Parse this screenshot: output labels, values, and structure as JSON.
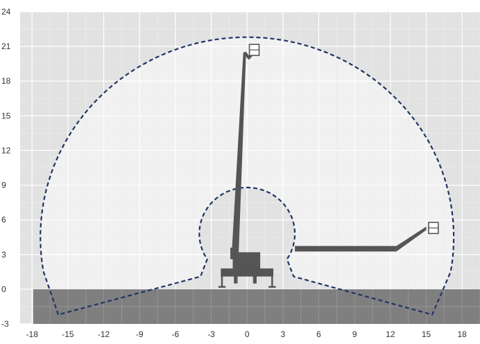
{
  "colors": {
    "plot_background": "#e2e2e2",
    "envelope_fill": "#f1f1f1",
    "grid_major": "#ffffff",
    "grid_minor": "#ececec",
    "ground": "#7f7f7f",
    "ground_grid": "#9a9a9a",
    "envelope_line": "#1f3464",
    "machine": "#555555",
    "tick_label": "#333333"
  },
  "chart_data": {
    "type": "diagram",
    "title": "",
    "xlabel": "",
    "ylabel": "",
    "xlim": [
      -19,
      19.5
    ],
    "ylim": [
      -3,
      24
    ],
    "grid": true,
    "x_ticks": [
      -18,
      -15,
      -12,
      -9,
      -6,
      -3,
      0,
      3,
      6,
      9,
      12,
      15,
      18
    ],
    "y_ticks": [
      -3,
      0,
      3,
      6,
      9,
      12,
      15,
      18,
      21,
      24
    ],
    "x_tick_labels": [
      "-18",
      "-15",
      "-12",
      "-9",
      "-6",
      "-3",
      "0",
      "3",
      "6",
      "9",
      "12",
      "15",
      "18"
    ],
    "y_tick_labels": [
      "-3",
      "0",
      "3",
      "6",
      "9",
      "12",
      "15",
      "18",
      "21",
      "24"
    ],
    "ground_level": 0,
    "working_envelope": {
      "outer_arc_center": [
        0,
        4.5
      ],
      "outer_arc_radius": 17.3,
      "outer_base_left": [
        -15.8,
        -2.2
      ],
      "outer_base_right": [
        15.5,
        -2.2
      ],
      "inner_arc_center": [
        0,
        4.8
      ],
      "inner_arc_radius": 4.0,
      "inner_base_left": [
        -3.9,
        1.1
      ],
      "inner_base_right": [
        3.9,
        1.1
      ]
    },
    "boom_vertical": {
      "base": [
        -1.0,
        3.0
      ],
      "tip": [
        -0.2,
        20.5
      ],
      "basket_center": [
        0.6,
        20.7
      ]
    },
    "boom_horizontal": {
      "start": [
        4.0,
        3.5
      ],
      "knee": [
        12.5,
        3.5
      ],
      "tip": [
        15.0,
        5.3
      ],
      "basket_center": [
        15.6,
        5.3
      ]
    },
    "machine_base": {
      "x_range": [
        -2.2,
        2.2
      ],
      "y_range": [
        0.4,
        3.2
      ]
    }
  }
}
